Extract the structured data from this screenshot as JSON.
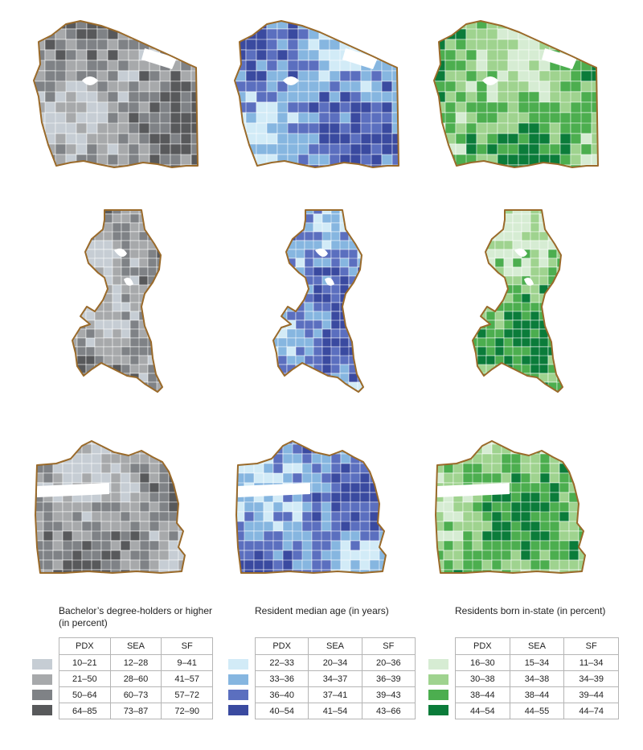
{
  "colors": {
    "boundary": "#9a6a2a",
    "gray": [
      "#c6cdd4",
      "#a7a9ab",
      "#7f8286",
      "#58595b"
    ],
    "blue": [
      "#d2ebf7",
      "#86b6e0",
      "#5b6fbf",
      "#3a4aa0"
    ],
    "green": [
      "#d6ecd3",
      "#9fd38f",
      "#4cae4f",
      "#0b7c3a"
    ]
  },
  "maps": [
    {
      "city": "PDX",
      "palette": "gray",
      "icon": "portland-outline-icon"
    },
    {
      "city": "PDX",
      "palette": "blue",
      "icon": "portland-outline-icon"
    },
    {
      "city": "PDX",
      "palette": "green",
      "icon": "portland-outline-icon"
    },
    {
      "city": "SEA",
      "palette": "gray",
      "icon": "seattle-outline-icon"
    },
    {
      "city": "SEA",
      "palette": "blue",
      "icon": "seattle-outline-icon"
    },
    {
      "city": "SEA",
      "palette": "green",
      "icon": "seattle-outline-icon"
    },
    {
      "city": "SF",
      "palette": "gray",
      "icon": "sanfrancisco-outline-icon"
    },
    {
      "city": "SF",
      "palette": "blue",
      "icon": "sanfrancisco-outline-icon"
    },
    {
      "city": "SF",
      "palette": "green",
      "icon": "sanfrancisco-outline-icon"
    }
  ],
  "legends": [
    {
      "title_line1": "Bachelor’s degree-holders or higher",
      "title_line2": "(in percent)",
      "palette": "gray",
      "headers": [
        "PDX",
        "SEA",
        "SF"
      ],
      "rows": [
        [
          "10–21",
          "12–28",
          "9–41"
        ],
        [
          "21–50",
          "28–60",
          "41–57"
        ],
        [
          "50–64",
          "60–73",
          "57–72"
        ],
        [
          "64–85",
          "73–87",
          "72–90"
        ]
      ]
    },
    {
      "title_line1": "Resident median age (in years)",
      "title_line2": "",
      "palette": "blue",
      "headers": [
        "PDX",
        "SEA",
        "SF"
      ],
      "rows": [
        [
          "22–33",
          "20–34",
          "20–36"
        ],
        [
          "33–36",
          "34–37",
          "36–39"
        ],
        [
          "36–40",
          "37–41",
          "39–43"
        ],
        [
          "40–54",
          "41–54",
          "43–66"
        ]
      ]
    },
    {
      "title_line1": "Residents born in-state (in percent)",
      "title_line2": "",
      "palette": "green",
      "headers": [
        "PDX",
        "SEA",
        "SF"
      ],
      "rows": [
        [
          "16–30",
          "15–34",
          "11–34"
        ],
        [
          "30–38",
          "34–38",
          "34–39"
        ],
        [
          "38–44",
          "38–44",
          "39–44"
        ],
        [
          "44–54",
          "44–55",
          "44–74"
        ]
      ]
    }
  ]
}
